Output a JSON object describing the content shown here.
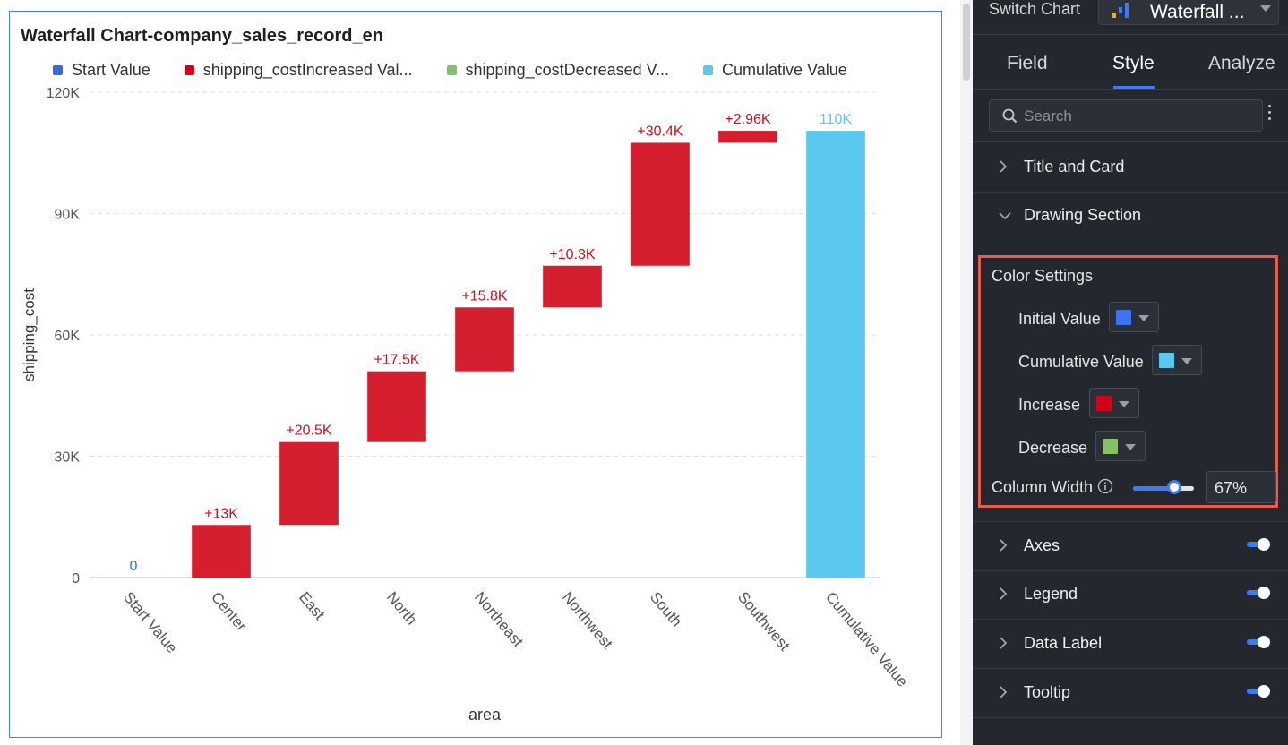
{
  "chart": {
    "title": "Waterfall Chart-company_sales_record_en",
    "legend": [
      {
        "label": "Start Value",
        "color": "#2f6de1"
      },
      {
        "label": "shipping_costIncreased Val...",
        "color": "#d0021b"
      },
      {
        "label": "shipping_costDecreased V...",
        "color": "#84c066"
      },
      {
        "label": "Cumulative Value",
        "color": "#5bc8f0"
      }
    ]
  },
  "chart_data": {
    "type": "waterfall",
    "xlabel": "area",
    "ylabel": "shipping_cost",
    "ylim": [
      0,
      120000
    ],
    "yticks": [
      {
        "value": 0,
        "label": "0"
      },
      {
        "value": 30000,
        "label": "30K"
      },
      {
        "value": 60000,
        "label": "60K"
      },
      {
        "value": 90000,
        "label": "90K"
      },
      {
        "value": 120000,
        "label": "120K"
      }
    ],
    "bars": [
      {
        "category": "Start Value",
        "kind": "start",
        "base": 0,
        "value": 0,
        "label": "0"
      },
      {
        "category": "Center",
        "kind": "increase",
        "base": 0,
        "value": 13000,
        "label": "+13K"
      },
      {
        "category": "East",
        "kind": "increase",
        "base": 13000,
        "value": 20500,
        "label": "+20.5K"
      },
      {
        "category": "North",
        "kind": "increase",
        "base": 33500,
        "value": 17500,
        "label": "+17.5K"
      },
      {
        "category": "Northeast",
        "kind": "increase",
        "base": 51000,
        "value": 15800,
        "label": "+15.8K"
      },
      {
        "category": "Northwest",
        "kind": "increase",
        "base": 66800,
        "value": 10300,
        "label": "+10.3K"
      },
      {
        "category": "South",
        "kind": "increase",
        "base": 77100,
        "value": 30400,
        "label": "+30.4K"
      },
      {
        "category": "Southwest",
        "kind": "increase",
        "base": 107500,
        "value": 2960,
        "label": "+2.96K"
      },
      {
        "category": "Cumulative Value",
        "kind": "cumulative",
        "base": 0,
        "value": 110460,
        "label": "110K"
      }
    ],
    "colors": {
      "start": "#2f6de1",
      "increase": "#d51f2e",
      "decrease": "#84c066",
      "cumulative": "#5bc8f0",
      "label_increase": "#c9101e"
    }
  },
  "panel": {
    "switch_label": "Switch Chart",
    "chart_type": "Waterfall ...",
    "tabs": [
      "Field",
      "Style",
      "Analyze"
    ],
    "active_tab": "Style",
    "search_placeholder": "Search",
    "sections": {
      "title_card": "Title and Card",
      "drawing": "Drawing Section",
      "axes": "Axes",
      "legend": "Legend",
      "data_label": "Data Label",
      "tooltip": "Tooltip"
    },
    "color_settings": {
      "title": "Color Settings",
      "initial_label": "Initial Value",
      "initial_color": "#3d72f0",
      "cumulative_label": "Cumulative Value",
      "cumulative_color": "#5bc8f0",
      "increase_label": "Increase",
      "increase_color": "#d0021b",
      "decrease_label": "Decrease",
      "decrease_color": "#84c066"
    },
    "column_width_label": "Column Width",
    "column_width_value": "67%",
    "column_width_fraction": 0.67
  }
}
